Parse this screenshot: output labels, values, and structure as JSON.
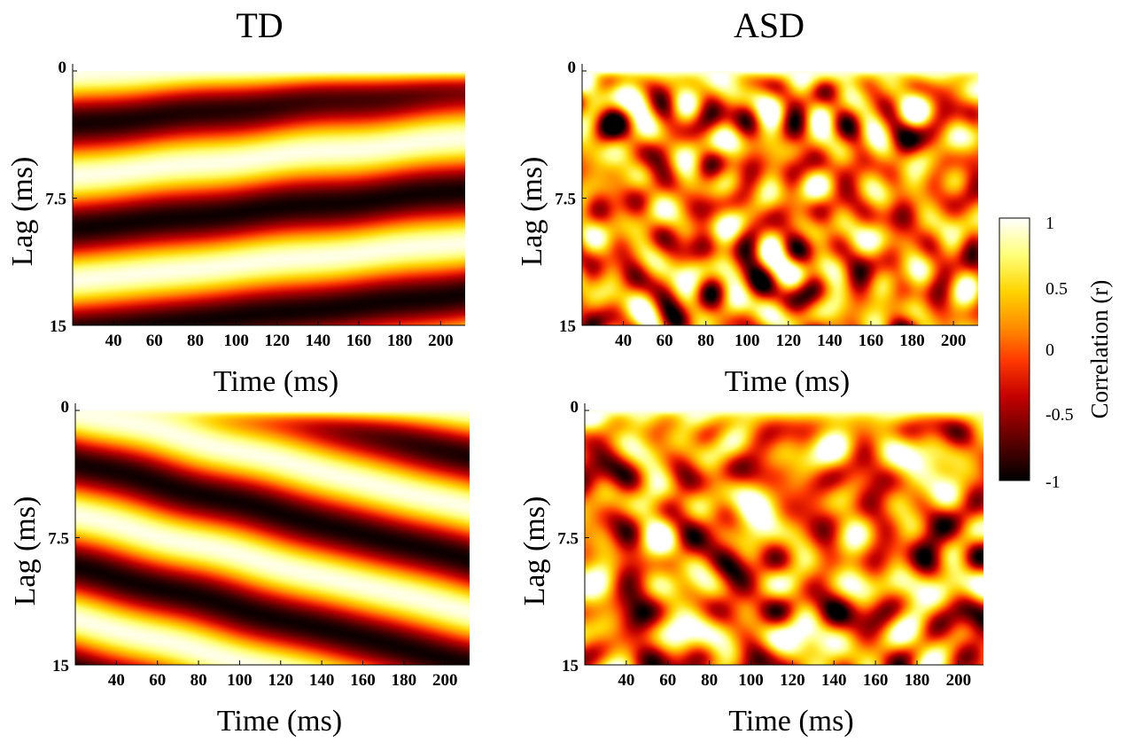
{
  "chart_data": {
    "type": "heatmap",
    "column_titles": [
      "TD",
      "ASD"
    ],
    "x_range": [
      20,
      212
    ],
    "y_range": [
      0,
      15
    ],
    "y_reversed": true,
    "x_ticks": [
      "40",
      "60",
      "80",
      "100",
      "120",
      "140",
      "160",
      "180",
      "200"
    ],
    "y_ticks": [
      "0",
      "7.5",
      "15"
    ],
    "xlabel": "Time (ms)",
    "ylabel": "Lag (ms)",
    "colormap": [
      "#000000",
      "#5a0000",
      "#c40000",
      "#ff3a00",
      "#ff8a00",
      "#ffd400",
      "#ffff7a",
      "#ffffff"
    ],
    "colorbar": {
      "label": "Correlation (r)",
      "range": [
        -1,
        1
      ],
      "ticks": [
        "1",
        "0.5",
        "0",
        "-0.5",
        "-1"
      ]
    },
    "panels": [
      {
        "group": "TD",
        "row": 1,
        "pattern": "diagonal-bands",
        "description_values": {
          "band_period_ms": 6.2,
          "slope_ms_per_ms": 0.012
        }
      },
      {
        "group": "ASD",
        "row": 1,
        "pattern": "patchy"
      },
      {
        "group": "TD",
        "row": 2,
        "pattern": "diagonal-bands",
        "description_values": {
          "band_period_ms": 6.2,
          "slope_ms_per_ms": -0.03
        }
      },
      {
        "group": "ASD",
        "row": 2,
        "pattern": "patchy"
      }
    ]
  }
}
